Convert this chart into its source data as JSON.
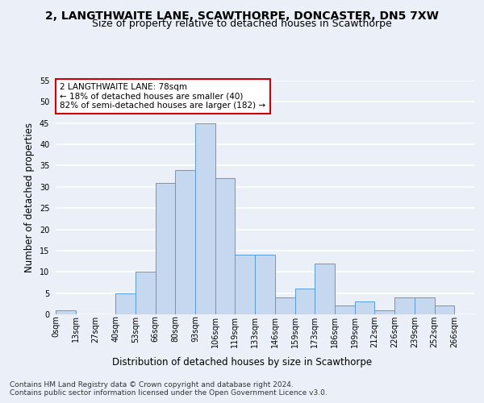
{
  "title_line1": "2, LANGTHWAITE LANE, SCAWTHORPE, DONCASTER, DN5 7XW",
  "title_line2": "Size of property relative to detached houses in Scawthorpe",
  "xlabel": "Distribution of detached houses by size in Scawthorpe",
  "ylabel": "Number of detached properties",
  "bin_labels": [
    "0sqm",
    "13sqm",
    "27sqm",
    "40sqm",
    "53sqm",
    "66sqm",
    "80sqm",
    "93sqm",
    "106sqm",
    "119sqm",
    "133sqm",
    "146sqm",
    "159sqm",
    "173sqm",
    "186sqm",
    "199sqm",
    "212sqm",
    "226sqm",
    "239sqm",
    "252sqm",
    "266sqm"
  ],
  "bar_values": [
    1,
    0,
    0,
    5,
    10,
    31,
    34,
    45,
    32,
    14,
    14,
    4,
    6,
    12,
    2,
    3,
    1,
    4,
    4,
    2,
    0
  ],
  "bar_color": "#c5d8f0",
  "bar_edge_color": "#5b9bd5",
  "annotation_text": "2 LANGTHWAITE LANE: 78sqm\n← 18% of detached houses are smaller (40)\n82% of semi-detached houses are larger (182) →",
  "annotation_box_color": "#ffffff",
  "annotation_box_edge_color": "#cc0000",
  "ylim": [
    0,
    55
  ],
  "yticks": [
    0,
    5,
    10,
    15,
    20,
    25,
    30,
    35,
    40,
    45,
    50,
    55
  ],
  "footer_text": "Contains HM Land Registry data © Crown copyright and database right 2024.\nContains public sector information licensed under the Open Government Licence v3.0.",
  "background_color": "#eaeff8",
  "plot_background_color": "#eaeff8",
  "grid_color": "#ffffff",
  "title_fontsize": 10,
  "subtitle_fontsize": 9,
  "axis_label_fontsize": 8.5,
  "tick_fontsize": 7,
  "footer_fontsize": 6.5,
  "annotation_fontsize": 7.5
}
